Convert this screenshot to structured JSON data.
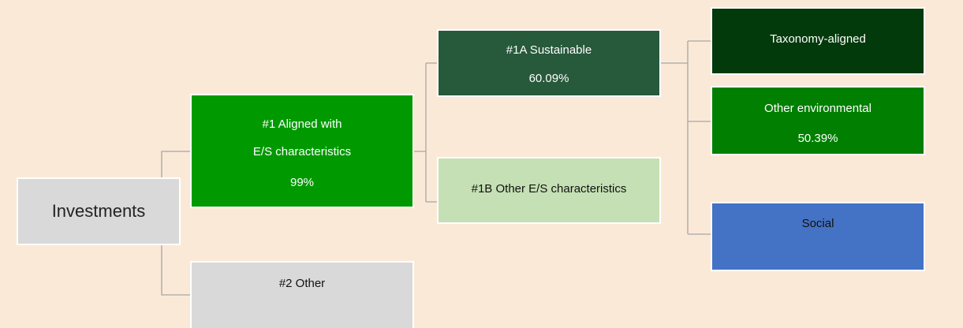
{
  "nodes": [
    {
      "lines": [
        "Investments"
      ]
    },
    {
      "lines": [
        "#1 Aligned with",
        "E/S characteristics",
        "99%"
      ]
    },
    {
      "lines": [
        "#2 Other"
      ]
    },
    {
      "lines": [
        "#1A Sustainable",
        "60.09%"
      ]
    },
    {
      "lines": [
        "#1B Other E/S characteristics"
      ]
    },
    {
      "lines": [
        "Taxonomy-aligned"
      ]
    },
    {
      "lines": [
        "Other environmental",
        "50.39%"
      ]
    },
    {
      "lines": [
        "Social"
      ]
    }
  ]
}
